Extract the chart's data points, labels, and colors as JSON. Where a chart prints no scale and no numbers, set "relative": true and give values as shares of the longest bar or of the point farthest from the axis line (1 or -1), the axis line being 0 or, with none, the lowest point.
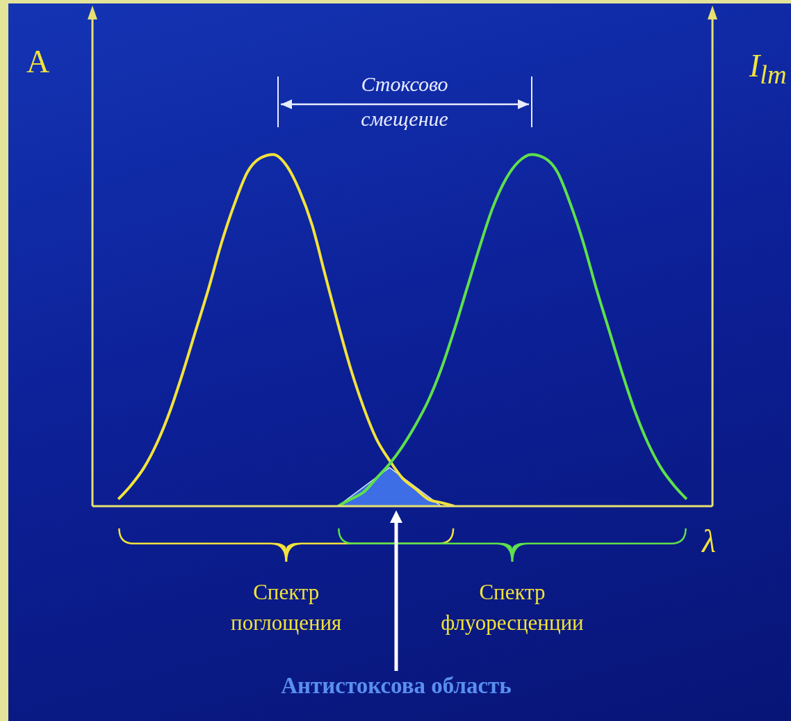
{
  "chart_data": {
    "type": "line",
    "relative": true,
    "ylabel": "A",
    "y2label": "I$_{lm}$",
    "xlabel": "λ",
    "annotations": [
      "Стоксово смещение",
      "Антистоксова область",
      "Спектр поглощения",
      "Спектр флуоресценции"
    ],
    "categories": [
      null,
      null,
      null,
      null,
      null,
      null,
      null,
      null,
      null,
      null,
      null,
      null,
      null,
      null,
      null,
      null,
      null,
      null,
      null,
      null,
      null,
      null,
      null,
      null,
      null,
      null,
      null,
      null,
      null,
      null,
      null,
      null,
      null,
      null,
      null,
      null,
      null,
      null,
      null,
      null,
      null,
      null,
      null,
      null,
      null,
      null,
      null,
      null,
      null
    ],
    "series": [
      {
        "color": "#f2e33a",
        "values": [
          null,
          null,
          0.02,
          0.06,
          0.11,
          0.18,
          0.27,
          0.38,
          0.5,
          0.62,
          0.75,
          0.86,
          0.95,
          0.99,
          1,
          0.97,
          0.9,
          0.8,
          0.66,
          0.52,
          0.39,
          0.28,
          0.19,
          0.13,
          0.08,
          0.05,
          0.02,
          0.01,
          0,
          null,
          null,
          null,
          null,
          null,
          null,
          null,
          null,
          null,
          null,
          null,
          null,
          null,
          null,
          null,
          null,
          null,
          null,
          null,
          null
        ]
      },
      {
        "color": "#5ee04a",
        "values": [
          null,
          null,
          null,
          null,
          null,
          null,
          null,
          null,
          null,
          null,
          null,
          null,
          null,
          null,
          null,
          null,
          null,
          null,
          null,
          0,
          0.02,
          0.04,
          0.08,
          0.12,
          0.17,
          0.23,
          0.3,
          0.39,
          0.5,
          0.62,
          0.74,
          0.85,
          0.93,
          0.98,
          1,
          0.99,
          0.95,
          0.86,
          0.75,
          0.62,
          0.5,
          0.38,
          0.27,
          0.18,
          0.11,
          0.06,
          0.02,
          null,
          null
        ]
      },
      {
        "type": "area",
        "color": "#3d6ee6",
        "values": [
          null,
          null,
          null,
          null,
          null,
          null,
          null,
          null,
          null,
          null,
          null,
          null,
          null,
          null,
          null,
          null,
          null,
          null,
          null,
          0,
          null,
          null,
          null,
          0.11,
          null,
          null,
          null,
          0,
          null,
          null,
          null,
          null,
          null,
          null,
          null,
          null,
          null,
          null,
          null,
          null,
          null,
          null,
          null,
          null,
          null,
          null,
          null,
          null,
          null
        ]
      }
    ]
  }
}
